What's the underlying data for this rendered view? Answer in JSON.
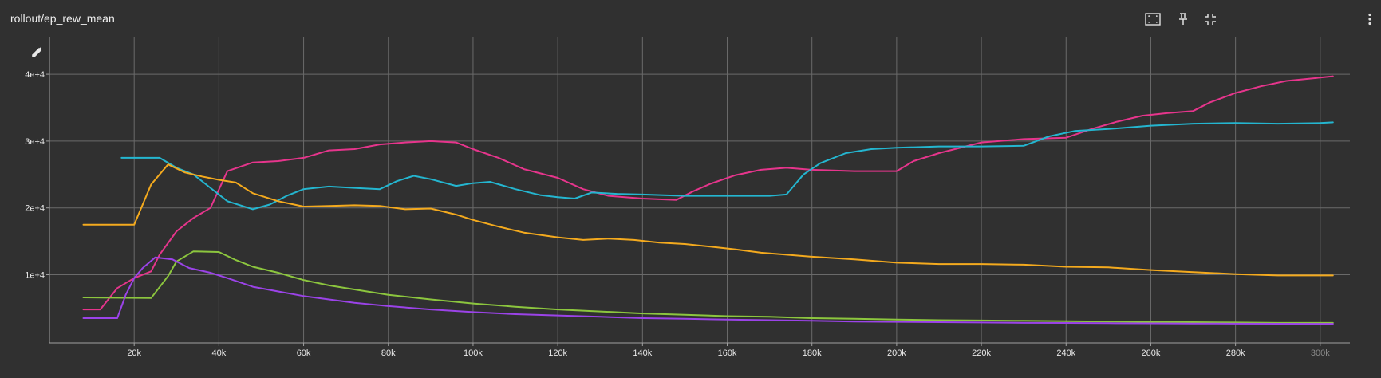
{
  "header": {
    "title": "rollout/ep_rew_mean"
  },
  "toolbar": {
    "icons": [
      "fit-domain-icon",
      "pin-icon",
      "collapse-icon",
      "more-vert-icon"
    ]
  },
  "chart_data": {
    "type": "line",
    "title": "rollout/ep_rew_mean",
    "xlabel": "",
    "ylabel": "",
    "xlim": [
      0,
      307000
    ],
    "ylim": [
      -200,
      45500
    ],
    "x_ticks": [
      20000,
      40000,
      60000,
      80000,
      100000,
      120000,
      140000,
      160000,
      180000,
      200000,
      220000,
      240000,
      260000,
      280000,
      300000
    ],
    "x_tick_labels": [
      "20k",
      "40k",
      "60k",
      "80k",
      "100k",
      "120k",
      "140k",
      "160k",
      "180k",
      "200k",
      "220k",
      "240k",
      "260k",
      "280k",
      "300k"
    ],
    "y_ticks": [
      10000,
      20000,
      30000,
      40000
    ],
    "y_tick_labels": [
      "1e+4",
      "2e+4",
      "3e+4",
      "4e+4"
    ],
    "grid": true,
    "legend": "none",
    "colors": {
      "background": "#303030",
      "grid": "#6a6a6a",
      "axis": "#a0a0a0"
    },
    "series": [
      {
        "color": "#e6358c",
        "values": [
          [
            8000,
            4800
          ],
          [
            12000,
            4800
          ],
          [
            16000,
            8000
          ],
          [
            20000,
            9500
          ],
          [
            24000,
            10500
          ],
          [
            26000,
            13000
          ],
          [
            30000,
            16500
          ],
          [
            34000,
            18500
          ],
          [
            38000,
            20000
          ],
          [
            42000,
            25500
          ],
          [
            48000,
            26800
          ],
          [
            54000,
            27000
          ],
          [
            60000,
            27500
          ],
          [
            66000,
            28600
          ],
          [
            72000,
            28800
          ],
          [
            78000,
            29500
          ],
          [
            84000,
            29800
          ],
          [
            90000,
            30000
          ],
          [
            96000,
            29800
          ],
          [
            100000,
            28800
          ],
          [
            106000,
            27500
          ],
          [
            112000,
            25800
          ],
          [
            120000,
            24500
          ],
          [
            126000,
            22800
          ],
          [
            132000,
            21800
          ],
          [
            140000,
            21400
          ],
          [
            148000,
            21200
          ],
          [
            152000,
            22500
          ],
          [
            156000,
            23600
          ],
          [
            162000,
            24900
          ],
          [
            168000,
            25700
          ],
          [
            174000,
            26000
          ],
          [
            180000,
            25700
          ],
          [
            190000,
            25500
          ],
          [
            200000,
            25500
          ],
          [
            204000,
            27000
          ],
          [
            210000,
            28200
          ],
          [
            220000,
            29800
          ],
          [
            230000,
            30300
          ],
          [
            240000,
            30500
          ],
          [
            246000,
            31800
          ],
          [
            252000,
            32900
          ],
          [
            258000,
            33800
          ],
          [
            264000,
            34200
          ],
          [
            270000,
            34500
          ],
          [
            274000,
            35800
          ],
          [
            280000,
            37200
          ],
          [
            286000,
            38200
          ],
          [
            292000,
            39000
          ],
          [
            300000,
            39500
          ],
          [
            303000,
            39700
          ]
        ]
      },
      {
        "color": "#24b6d0",
        "values": [
          [
            17000,
            27500
          ],
          [
            26000,
            27500
          ],
          [
            30000,
            26000
          ],
          [
            34000,
            25000
          ],
          [
            38000,
            23000
          ],
          [
            42000,
            21000
          ],
          [
            48000,
            19800
          ],
          [
            52000,
            20500
          ],
          [
            56000,
            21800
          ],
          [
            60000,
            22800
          ],
          [
            66000,
            23200
          ],
          [
            72000,
            23000
          ],
          [
            78000,
            22800
          ],
          [
            82000,
            24000
          ],
          [
            86000,
            24800
          ],
          [
            90000,
            24300
          ],
          [
            96000,
            23300
          ],
          [
            100000,
            23700
          ],
          [
            104000,
            23900
          ],
          [
            110000,
            22800
          ],
          [
            116000,
            21900
          ],
          [
            120000,
            21600
          ],
          [
            124000,
            21400
          ],
          [
            128000,
            22300
          ],
          [
            134000,
            22100
          ],
          [
            140000,
            22000
          ],
          [
            150000,
            21800
          ],
          [
            160000,
            21800
          ],
          [
            170000,
            21800
          ],
          [
            174000,
            22000
          ],
          [
            178000,
            25000
          ],
          [
            182000,
            26700
          ],
          [
            188000,
            28200
          ],
          [
            194000,
            28800
          ],
          [
            200000,
            29000
          ],
          [
            210000,
            29200
          ],
          [
            220000,
            29200
          ],
          [
            230000,
            29300
          ],
          [
            236000,
            30700
          ],
          [
            242000,
            31500
          ],
          [
            250000,
            31800
          ],
          [
            260000,
            32300
          ],
          [
            270000,
            32600
          ],
          [
            280000,
            32700
          ],
          [
            290000,
            32600
          ],
          [
            300000,
            32700
          ],
          [
            303000,
            32800
          ]
        ]
      },
      {
        "color": "#f4aa1e",
        "values": [
          [
            8000,
            17500
          ],
          [
            20000,
            17500
          ],
          [
            24000,
            23500
          ],
          [
            28000,
            26500
          ],
          [
            32000,
            25300
          ],
          [
            36000,
            24700
          ],
          [
            40000,
            24200
          ],
          [
            44000,
            23800
          ],
          [
            48000,
            22200
          ],
          [
            54000,
            21000
          ],
          [
            60000,
            20200
          ],
          [
            66000,
            20300
          ],
          [
            72000,
            20400
          ],
          [
            78000,
            20300
          ],
          [
            84000,
            19800
          ],
          [
            90000,
            19900
          ],
          [
            96000,
            19000
          ],
          [
            100000,
            18200
          ],
          [
            106000,
            17200
          ],
          [
            112000,
            16300
          ],
          [
            120000,
            15600
          ],
          [
            126000,
            15200
          ],
          [
            132000,
            15400
          ],
          [
            138000,
            15200
          ],
          [
            144000,
            14800
          ],
          [
            150000,
            14600
          ],
          [
            156000,
            14200
          ],
          [
            162000,
            13800
          ],
          [
            168000,
            13300
          ],
          [
            174000,
            13000
          ],
          [
            180000,
            12700
          ],
          [
            190000,
            12300
          ],
          [
            200000,
            11800
          ],
          [
            210000,
            11600
          ],
          [
            220000,
            11600
          ],
          [
            230000,
            11500
          ],
          [
            240000,
            11200
          ],
          [
            250000,
            11100
          ],
          [
            260000,
            10700
          ],
          [
            270000,
            10400
          ],
          [
            280000,
            10100
          ],
          [
            290000,
            9900
          ],
          [
            300000,
            9900
          ],
          [
            303000,
            9900
          ]
        ]
      },
      {
        "color": "#8cc63e",
        "values": [
          [
            8000,
            6600
          ],
          [
            24000,
            6500
          ],
          [
            28000,
            9800
          ],
          [
            30000,
            12000
          ],
          [
            34000,
            13500
          ],
          [
            40000,
            13400
          ],
          [
            44000,
            12200
          ],
          [
            48000,
            11200
          ],
          [
            54000,
            10300
          ],
          [
            60000,
            9200
          ],
          [
            66000,
            8400
          ],
          [
            72000,
            7800
          ],
          [
            80000,
            7000
          ],
          [
            90000,
            6300
          ],
          [
            100000,
            5700
          ],
          [
            110000,
            5200
          ],
          [
            120000,
            4800
          ],
          [
            130000,
            4500
          ],
          [
            140000,
            4200
          ],
          [
            150000,
            4000
          ],
          [
            160000,
            3800
          ],
          [
            170000,
            3700
          ],
          [
            180000,
            3500
          ],
          [
            190000,
            3400
          ],
          [
            200000,
            3300
          ],
          [
            210000,
            3200
          ],
          [
            220000,
            3150
          ],
          [
            230000,
            3100
          ],
          [
            240000,
            3050
          ],
          [
            250000,
            3000
          ],
          [
            260000,
            2950
          ],
          [
            270000,
            2900
          ],
          [
            280000,
            2850
          ],
          [
            290000,
            2800
          ],
          [
            300000,
            2800
          ],
          [
            303000,
            2800
          ]
        ]
      },
      {
        "color": "#9b43e8",
        "values": [
          [
            8000,
            3500
          ],
          [
            16000,
            3500
          ],
          [
            18000,
            7000
          ],
          [
            20000,
            9500
          ],
          [
            22000,
            11000
          ],
          [
            25000,
            12600
          ],
          [
            29000,
            12300
          ],
          [
            33000,
            11000
          ],
          [
            38000,
            10300
          ],
          [
            42000,
            9500
          ],
          [
            48000,
            8200
          ],
          [
            54000,
            7500
          ],
          [
            60000,
            6800
          ],
          [
            66000,
            6300
          ],
          [
            72000,
            5800
          ],
          [
            80000,
            5300
          ],
          [
            90000,
            4800
          ],
          [
            100000,
            4400
          ],
          [
            110000,
            4100
          ],
          [
            120000,
            3900
          ],
          [
            130000,
            3700
          ],
          [
            140000,
            3500
          ],
          [
            150000,
            3400
          ],
          [
            160000,
            3300
          ],
          [
            170000,
            3200
          ],
          [
            180000,
            3100
          ],
          [
            190000,
            3000
          ],
          [
            200000,
            2950
          ],
          [
            210000,
            2900
          ],
          [
            220000,
            2850
          ],
          [
            230000,
            2800
          ],
          [
            240000,
            2780
          ],
          [
            250000,
            2750
          ],
          [
            260000,
            2720
          ],
          [
            270000,
            2700
          ],
          [
            280000,
            2680
          ],
          [
            290000,
            2660
          ],
          [
            300000,
            2650
          ],
          [
            303000,
            2650
          ]
        ]
      }
    ]
  }
}
